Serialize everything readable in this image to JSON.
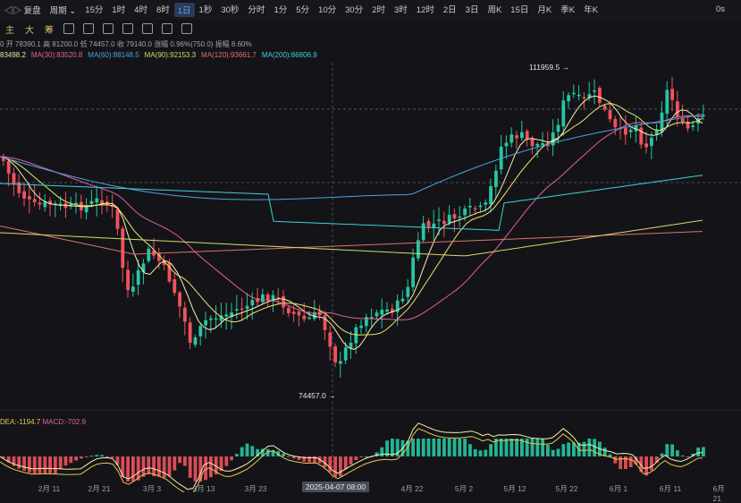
{
  "toolbar": {
    "left_label": "复盘",
    "period_label": "周期",
    "intervals": [
      "15分",
      "1时",
      "4时",
      "8时",
      "1日",
      "1秒",
      "30秒",
      "分时",
      "1分",
      "5分",
      "10分",
      "30分",
      "2时",
      "3时",
      "12时",
      "2日",
      "3日",
      "周K",
      "15日",
      "月K",
      "季K",
      "年K"
    ],
    "active_interval": "1日",
    "right_label": "0s"
  },
  "toolbar2": {
    "items": [
      "主",
      "大",
      "筹"
    ]
  },
  "info": {
    "open": "开 78390.1",
    "high": "高 81200.0",
    "low": "低 74457.0",
    "close": "收 79140.0",
    "change": "涨幅 0.96%(750.0)",
    "amplitude": "振幅 8.60%",
    "prefix": "0"
  },
  "ma": [
    {
      "text": "83498.2",
      "color": "#e8e8a0"
    },
    {
      "text": "MA(30):83520.8",
      "color": "#e05fa6"
    },
    {
      "text": "MA(60):88148.5",
      "color": "#4aa3e0"
    },
    {
      "text": "MA(90):92153.3",
      "color": "#d8d86a"
    },
    {
      "text": "MA(120):93661.7",
      "color": "#e07070"
    },
    {
      "text": "MA(200):86806.9",
      "color": "#40d0d8"
    }
  ],
  "macd": {
    "dea": "DEA:-1194.7",
    "macd": "MACD:-702.9"
  },
  "annotations": {
    "high": "111959.5",
    "low": "74457.0"
  },
  "xaxis": {
    "labels": [
      {
        "t": "2月 11",
        "x": 55
      },
      {
        "t": "2月 21",
        "x": 111
      },
      {
        "t": "3月 3",
        "x": 170
      },
      {
        "t": "3月 13",
        "x": 228
      },
      {
        "t": "3月 23",
        "x": 286
      },
      {
        "t": "4月 22",
        "x": 461
      },
      {
        "t": "5月 2",
        "x": 519
      },
      {
        "t": "5月 12",
        "x": 576
      },
      {
        "t": "5月 22",
        "x": 634
      },
      {
        "t": "6月 1",
        "x": 692
      },
      {
        "t": "6月 11",
        "x": 750
      },
      {
        "t": "6月 21",
        "x": 808
      }
    ],
    "cursor_label": "2025-04-07 08:00"
  },
  "colors": {
    "up": "#26c6a0",
    "down": "#f0525e",
    "bg": "#141418"
  }
}
